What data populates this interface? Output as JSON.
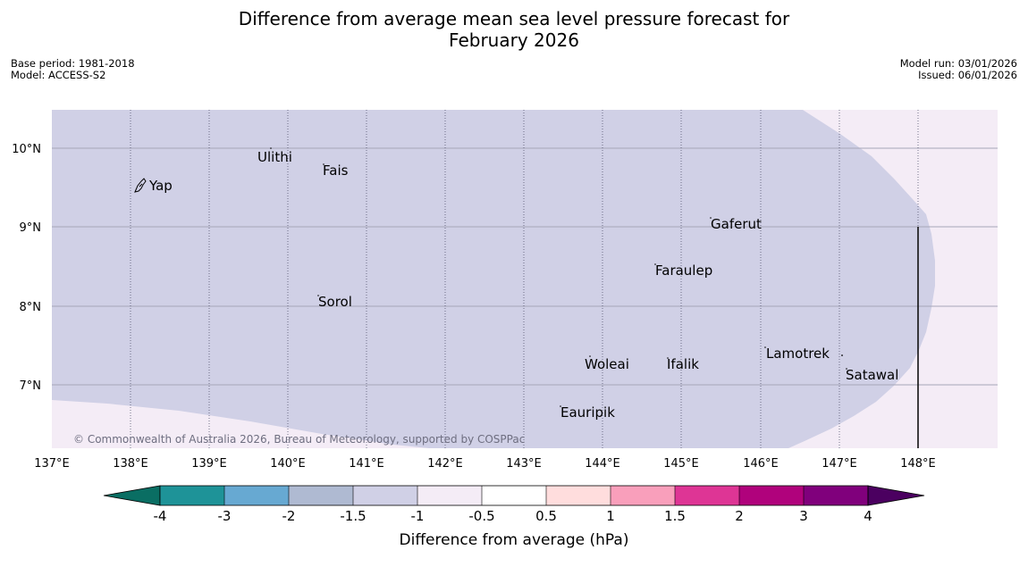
{
  "title": {
    "line1": "Difference from average mean sea level pressure forecast for",
    "line2": "February 2026"
  },
  "meta": {
    "base_period": "Base period: 1981-2018",
    "model": "Model: ACCESS-S2",
    "model_run": "Model run: 03/01/2026",
    "issued": "Issued: 06/01/2026"
  },
  "map": {
    "lat_labels": [
      "10°N",
      "9°N",
      "8°N",
      "7°N"
    ],
    "lon_labels": [
      "137°E",
      "138°E",
      "139°E",
      "140°E",
      "141°E",
      "142°E",
      "143°E",
      "144°E",
      "145°E",
      "146°E",
      "147°E",
      "148°E"
    ],
    "places": [
      "Yap",
      "Ulithi",
      "Fais",
      "Gaferut",
      "Faraulep",
      "Sorol",
      "Woleai",
      "Ifalik",
      "Lamotrek",
      "Satawal",
      "Eauripik"
    ],
    "copyright": "© Commonwealth of Australia 2026, Bureau of Meteorology, supported by COSPPac",
    "anomaly_colors": {
      "dominant": "#d0d0e6",
      "margin": "#f4ecf6"
    }
  },
  "colorbar": {
    "ticks": [
      "-4",
      "-3",
      "-2",
      "-1.5",
      "-1",
      "-0.5",
      "0.5",
      "1",
      "1.5",
      "2",
      "3",
      "4"
    ],
    "colors": [
      "#0a6e63",
      "#1e9398",
      "#67a9d2",
      "#afbad2",
      "#d0d0e6",
      "#f4ecf6",
      "#ffffff",
      "#ffdddd",
      "#f99fbb",
      "#de3595",
      "#b0027c",
      "#80007c",
      "#4b0060"
    ],
    "label": "Difference from average (hPa)"
  }
}
